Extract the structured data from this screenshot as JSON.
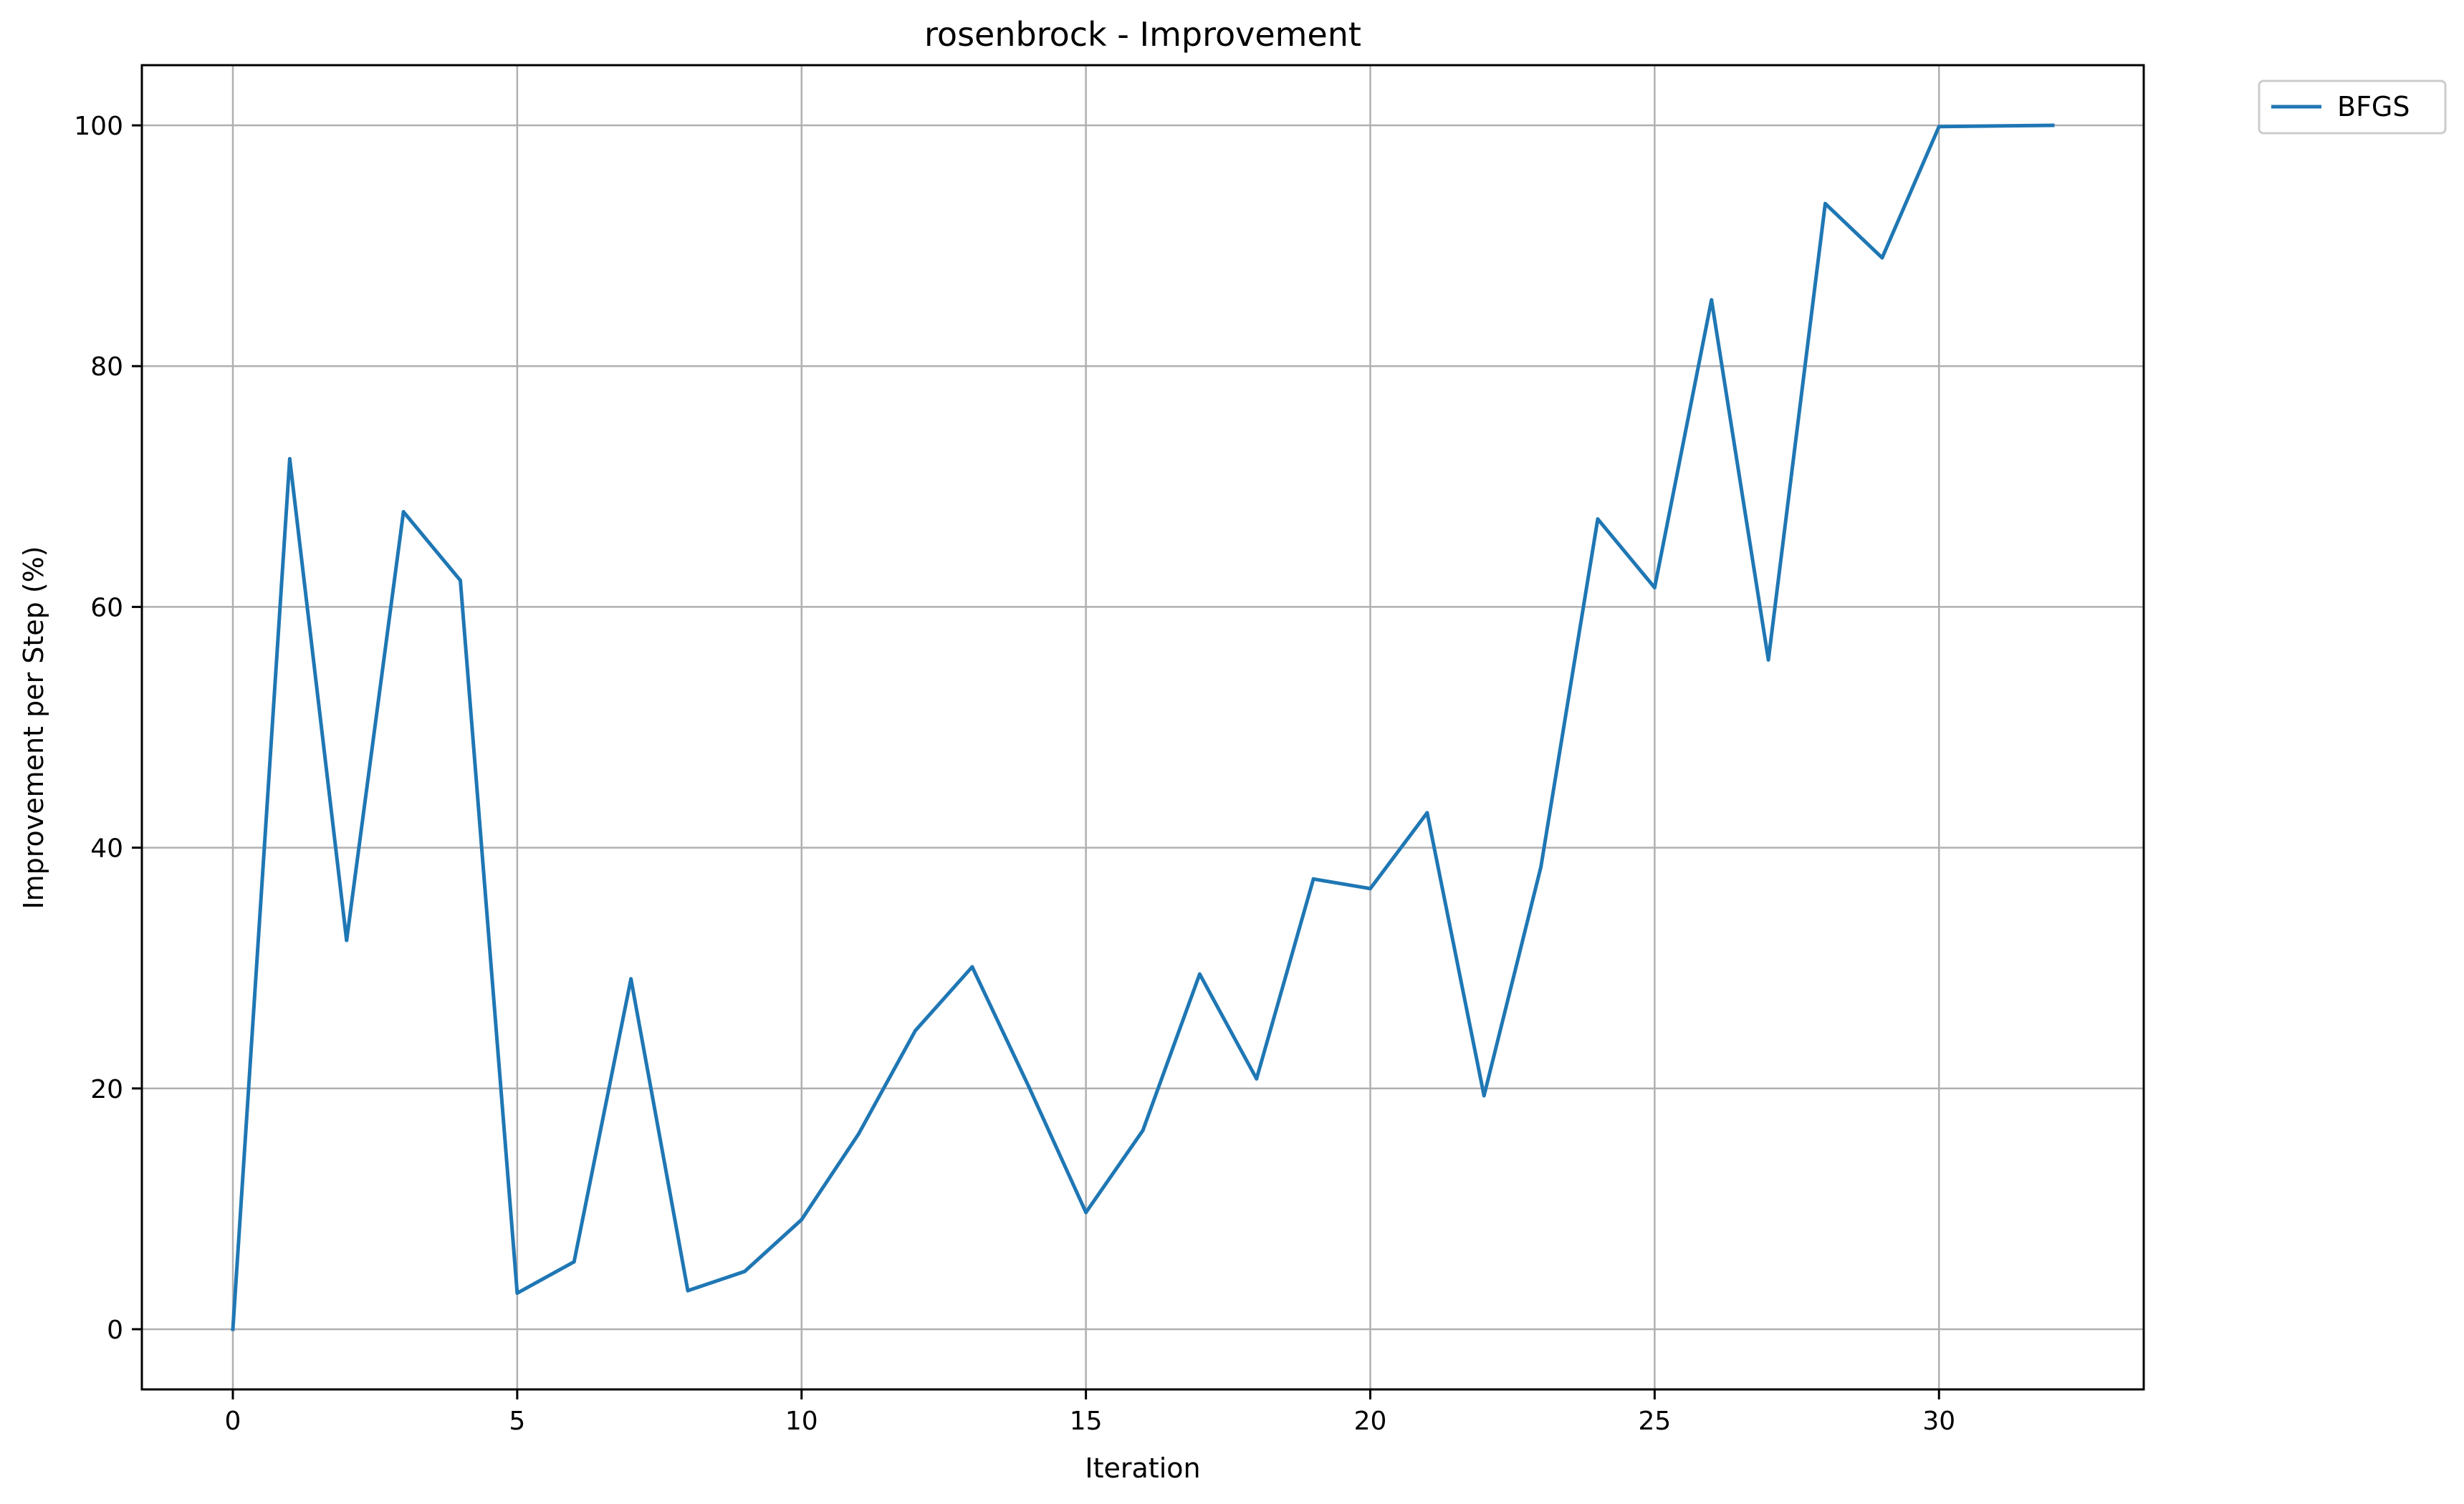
{
  "chart_data": {
    "type": "line",
    "title": "rosenbrock - Improvement",
    "xlabel": "Iteration",
    "ylabel": "Improvement per Step (%)",
    "xlim": [
      -1.6,
      33.6
    ],
    "ylim": [
      -5,
      105
    ],
    "xticks": [
      0,
      5,
      10,
      15,
      20,
      25,
      30
    ],
    "yticks": [
      0,
      20,
      40,
      60,
      80,
      100
    ],
    "grid": true,
    "legend_position": "outside-top-right",
    "series": [
      {
        "name": "BFGS",
        "color": "#1f77b4",
        "x": [
          0,
          1,
          2,
          3,
          4,
          5,
          6,
          7,
          8,
          9,
          10,
          11,
          12,
          13,
          14,
          15,
          16,
          17,
          18,
          19,
          20,
          21,
          22,
          23,
          24,
          25,
          26,
          27,
          28,
          29,
          30,
          32
        ],
        "y": [
          0.0,
          72.3,
          32.3,
          67.9,
          62.2,
          3.0,
          5.6,
          29.1,
          3.2,
          4.8,
          9.1,
          16.2,
          24.8,
          30.1,
          20.1,
          9.7,
          16.5,
          29.5,
          20.8,
          37.4,
          36.6,
          42.9,
          19.4,
          38.4,
          67.3,
          61.6,
          85.5,
          55.6,
          93.5,
          89.0,
          99.9,
          100.0
        ]
      }
    ]
  }
}
